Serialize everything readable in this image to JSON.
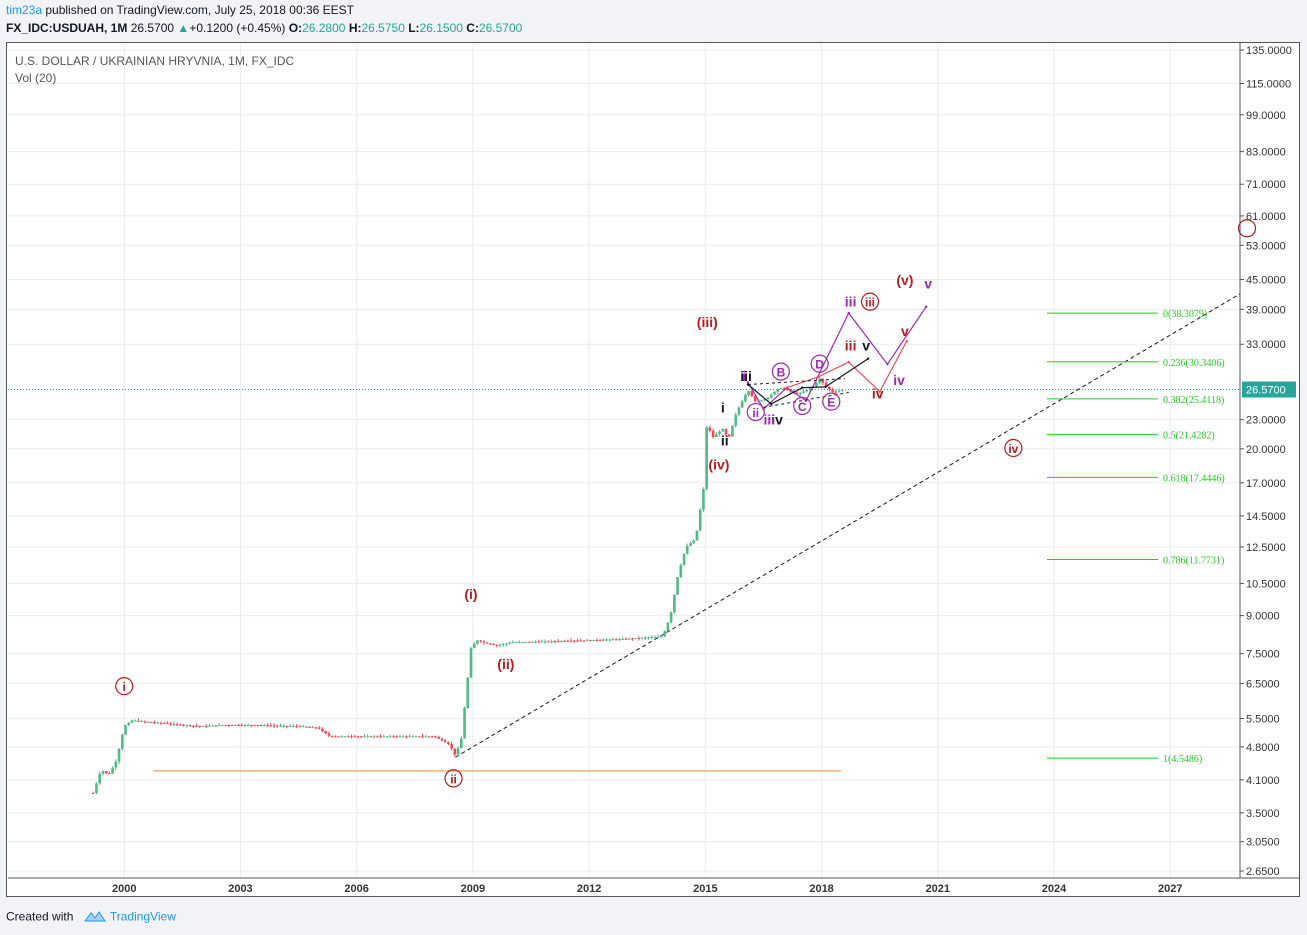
{
  "header": {
    "author": "tim23a",
    "published": " published on TradingView.com, July 25, 2018 00:36 EEST",
    "symbol": "FX_IDC:USDUAH, 1M",
    "last": "26.5700",
    "change_arrow": "▲",
    "change": "+0.1200 (+0.45%)",
    "o_label": "O:",
    "o": "26.2800",
    "h_label": "H:",
    "h": "26.5750",
    "l_label": "L:",
    "l": "26.1500",
    "c_label": "C:",
    "c": "26.5700"
  },
  "legend": {
    "title": "U.S. DOLLAR / UKRAINIAN HRYVNIA, 1M, FX_IDC",
    "vol": "Vol (20)"
  },
  "footer": {
    "created": "Created with",
    "brand": "TradingView"
  },
  "colors": {
    "up": "#53b987",
    "down": "#eb4d5c",
    "price_line": "#26a69a",
    "fib": "#22cc22",
    "red_wave": "#b71c1c",
    "purple_wave": "#9c27b0"
  },
  "chart_data": {
    "type": "candlestick",
    "title": "U.S. DOLLAR / UKRAINIAN HRYVNIA, 1M, FX_IDC",
    "y_scale": "log",
    "ylim": [
      2.65,
      135
    ],
    "xlim": [
      1997.0,
      2028.8
    ],
    "x_ticks": [
      "2000",
      "2003",
      "2006",
      "2009",
      "2012",
      "2015",
      "2018",
      "2021",
      "2024",
      "2027"
    ],
    "y_ticks": [
      "135.0000",
      "115.0000",
      "99.0000",
      "83.0000",
      "71.0000",
      "61.0000",
      "53.0000",
      "45.0000",
      "39.0000",
      "33.0000",
      "23.0000",
      "20.0000",
      "17.0000",
      "14.5000",
      "12.5000",
      "10.5000",
      "9.0000",
      "7.5000",
      "6.5000",
      "5.5000",
      "4.8000",
      "4.1000",
      "3.5000",
      "3.0500",
      "2.6500"
    ],
    "current_price": 26.57,
    "current_price_label": "26.5700",
    "price_path": [
      [
        1999.2,
        3.85
      ],
      [
        1999.4,
        4.3
      ],
      [
        1999.6,
        4.2
      ],
      [
        1999.8,
        4.5
      ],
      [
        2000.0,
        5.3
      ],
      [
        2000.2,
        5.45
      ],
      [
        2000.5,
        5.42
      ],
      [
        2001.0,
        5.38
      ],
      [
        2001.5,
        5.33
      ],
      [
        2002.0,
        5.3
      ],
      [
        2002.5,
        5.33
      ],
      [
        2003.0,
        5.33
      ],
      [
        2003.5,
        5.33
      ],
      [
        2004.0,
        5.31
      ],
      [
        2004.5,
        5.3
      ],
      [
        2005.0,
        5.26
      ],
      [
        2005.3,
        5.05
      ],
      [
        2006.0,
        5.05
      ],
      [
        2007.0,
        5.05
      ],
      [
        2008.0,
        5.05
      ],
      [
        2008.4,
        4.85
      ],
      [
        2008.55,
        4.6
      ],
      [
        2008.7,
        5.0
      ],
      [
        2008.85,
        6.5
      ],
      [
        2008.95,
        7.7
      ],
      [
        2009.1,
        8.0
      ],
      [
        2009.3,
        7.9
      ],
      [
        2009.6,
        7.8
      ],
      [
        2010.0,
        7.92
      ],
      [
        2011.0,
        7.96
      ],
      [
        2012.0,
        8.0
      ],
      [
        2012.9,
        8.05
      ],
      [
        2013.9,
        8.15
      ],
      [
        2014.1,
        9.0
      ],
      [
        2014.3,
        11.0
      ],
      [
        2014.5,
        12.5
      ],
      [
        2014.75,
        13.0
      ],
      [
        2014.95,
        16.5
      ],
      [
        2015.05,
        23.5
      ],
      [
        2015.15,
        21.0
      ],
      [
        2015.3,
        21.5
      ],
      [
        2015.45,
        22.0
      ],
      [
        2015.6,
        21.0
      ],
      [
        2015.8,
        23.8
      ],
      [
        2016.1,
        26.5
      ],
      [
        2016.3,
        25.0
      ],
      [
        2016.6,
        25.5
      ],
      [
        2016.9,
        26.8
      ],
      [
        2017.1,
        26.5
      ],
      [
        2017.4,
        26.0
      ],
      [
        2017.8,
        27.0
      ],
      [
        2017.95,
        28.0
      ],
      [
        2018.1,
        27.0
      ],
      [
        2018.3,
        26.2
      ],
      [
        2018.55,
        26.57
      ]
    ],
    "volume_note": "Vol (20)",
    "fib_levels": [
      {
        "ratio": "0",
        "price": 38.3079,
        "label": "0(38.3079)"
      },
      {
        "ratio": "0.236",
        "price": 30.3406,
        "label": "0.236(30.3406)"
      },
      {
        "ratio": "0.382",
        "price": 25.4118,
        "label": "0.382(25.4118)"
      },
      {
        "ratio": "0.5",
        "price": 21.4282,
        "label": "0.5(21.4282)"
      },
      {
        "ratio": "0.618",
        "price": 17.4446,
        "label": "0.618(17.4446)"
      },
      {
        "ratio": "0.786",
        "price": 11.7731,
        "label": "0.786(11.7731)"
      },
      {
        "ratio": "1",
        "price": 4.5486,
        "label": "1(4.5486)"
      }
    ],
    "support_line": {
      "price": 4.28,
      "from": 2000.75,
      "to": 2018.5
    },
    "trend_line": {
      "from": [
        2008.55,
        4.57
      ],
      "to": [
        2028.8,
        42.0
      ]
    },
    "annotations": [
      {
        "text": "i",
        "circled": true,
        "color": "#b71c1c",
        "at": [
          2000.0,
          6.3
        ]
      },
      {
        "text": "ii",
        "circled": true,
        "color": "#b71c1c",
        "at": [
          2008.5,
          4.05
        ]
      },
      {
        "text": "(i)",
        "circled": false,
        "color": "#b71c1c",
        "at": [
          2008.95,
          9.8
        ]
      },
      {
        "text": "(ii)",
        "circled": false,
        "color": "#b71c1c",
        "at": [
          2009.85,
          7.0
        ]
      },
      {
        "text": "(iii)",
        "circled": false,
        "color": "#b71c1c",
        "at": [
          2015.05,
          36.0
        ]
      },
      {
        "text": "(iv)",
        "circled": false,
        "color": "#b71c1c",
        "at": [
          2015.35,
          18.2
        ]
      },
      {
        "text": "(v)",
        "circled": false,
        "color": "#b71c1c",
        "at": [
          2020.15,
          44.0
        ]
      },
      {
        "text": "iii",
        "circled": true,
        "color": "#b71c1c",
        "at": [
          2019.25,
          39.7
        ]
      },
      {
        "text": "iv",
        "circled": true,
        "color": "#b71c1c",
        "at": [
          2022.95,
          19.7
        ]
      },
      {
        "text": "iii",
        "circled": false,
        "color": "#9c27b0",
        "at": [
          2018.75,
          39.7
        ]
      },
      {
        "text": "v",
        "circled": false,
        "color": "#9c27b0",
        "at": [
          2020.75,
          43.3
        ]
      },
      {
        "text": "iv",
        "circled": false,
        "color": "#9c27b0",
        "at": [
          2020.0,
          27.3
        ]
      },
      {
        "text": "iii",
        "circled": false,
        "color": "#b71c1c",
        "at": [
          2018.75,
          32.2
        ]
      },
      {
        "text": "v",
        "circled": false,
        "color": "#b71c1c",
        "at": [
          2020.15,
          34.5
        ]
      },
      {
        "text": "iv",
        "circled": false,
        "color": "#b71c1c",
        "at": [
          2019.45,
          25.6
        ]
      },
      {
        "text": "v",
        "circled": false,
        "color": "#131722",
        "at": [
          2019.15,
          32.2
        ]
      },
      {
        "text": "iii",
        "circled": false,
        "color": "#131722",
        "at": [
          2016.05,
          27.8
        ]
      },
      {
        "text": "i",
        "circled": false,
        "color": "#131722",
        "at": [
          2015.45,
          23.9
        ]
      },
      {
        "text": "ii",
        "circled": false,
        "color": "#131722",
        "at": [
          2015.5,
          20.4
        ]
      },
      {
        "text": "iv",
        "circled": false,
        "color": "#131722",
        "at": [
          2016.85,
          22.6
        ]
      },
      {
        "text": "i",
        "circled": false,
        "color": "#9c27b0",
        "at": [
          2016.0,
          27.8
        ]
      },
      {
        "text": "iii",
        "circled": false,
        "color": "#9c27b0",
        "at": [
          2016.65,
          22.6
        ]
      },
      {
        "text": "ii",
        "circled": true,
        "color": "#9c27b0",
        "at": [
          2016.3,
          23.4
        ]
      },
      {
        "text": "B",
        "circled": true,
        "color": "#9c27b0",
        "at": [
          2016.95,
          28.4
        ]
      },
      {
        "text": "C",
        "circled": true,
        "color": "#9c27b0",
        "at": [
          2017.5,
          24.1
        ]
      },
      {
        "text": "D",
        "circled": true,
        "color": "#9c27b0",
        "at": [
          2017.95,
          29.5
        ]
      },
      {
        "text": "E",
        "circled": true,
        "color": "#9c27b0",
        "at": [
          2018.25,
          24.6
        ]
      }
    ],
    "projection_paths": [
      {
        "color": "#9c27b0",
        "points": [
          [
            2016.1,
            27.5
          ],
          [
            2016.5,
            24.2
          ],
          [
            2017.1,
            26.8
          ],
          [
            2017.6,
            25.2
          ],
          [
            2018.7,
            38.3
          ],
          [
            2019.7,
            30.0
          ],
          [
            2020.7,
            39.5
          ]
        ]
      },
      {
        "color": "#eb4d5c",
        "points": [
          [
            2017.1,
            26.8
          ],
          [
            2017.9,
            28.2
          ],
          [
            2018.7,
            30.3
          ],
          [
            2019.5,
            26.3
          ],
          [
            2020.2,
            33.5
          ]
        ]
      },
      {
        "color": "#131722",
        "points": [
          [
            2016.1,
            27.2
          ],
          [
            2016.7,
            24.8
          ],
          [
            2017.5,
            26.8
          ],
          [
            2018.1,
            26.9
          ],
          [
            2019.2,
            30.8
          ]
        ]
      }
    ]
  }
}
